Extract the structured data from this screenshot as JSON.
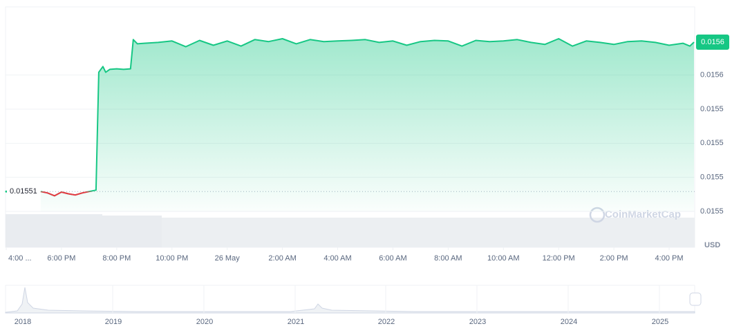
{
  "chart_data": {
    "type": "line",
    "x": [
      16,
      16.6,
      17.25,
      17.5,
      17.75,
      18,
      18.25,
      18.5,
      18.75,
      19,
      19.25,
      19.35,
      19.5,
      19.6,
      19.75,
      20,
      20.25,
      20.5,
      20.6,
      20.75,
      21,
      21.5,
      22,
      22.5,
      23,
      23.5,
      24,
      24.5,
      25,
      25.5,
      26,
      26.5,
      27,
      27.5,
      28,
      28.5,
      29,
      29.5,
      30,
      30.5,
      31,
      31.5,
      32,
      32.5,
      33,
      33.5,
      34,
      34.5,
      35,
      35.5,
      36,
      36.5,
      37,
      37.5,
      38,
      38.5,
      39,
      39.5,
      40,
      40.5,
      40.75,
      40.9
    ],
    "values": [
      0.01551,
      null,
      0.01551,
      0.0155095,
      0.0155085,
      0.0155098,
      0.0155092,
      0.0155088,
      0.0155095,
      0.01551,
      0.0155105,
      0.015552,
      0.015554,
      0.015552,
      0.015553,
      0.0155532,
      0.015553,
      0.0155532,
      0.0155635,
      0.015562,
      0.0155622,
      0.0155625,
      0.015563,
      0.015561,
      0.0155632,
      0.0155615,
      0.015563,
      0.0155612,
      0.0155635,
      0.0155628,
      0.0155638,
      0.015562,
      0.0155635,
      0.0155628,
      0.015563,
      0.0155632,
      0.0155635,
      0.0155625,
      0.015563,
      0.0155615,
      0.0155628,
      0.0155632,
      0.015563,
      0.0155612,
      0.0155632,
      0.0155628,
      0.015563,
      0.0155635,
      0.0155625,
      0.0155618,
      0.0155638,
      0.0155612,
      0.015563,
      0.0155625,
      0.0155618,
      0.0155628,
      0.015563,
      0.0155625,
      0.0155615,
      0.0155622,
      0.0155612,
      0.0155626
    ],
    "up_color": "#16c784",
    "down_color": "#ea3943",
    "xlim": [
      15.975,
      40.925
    ],
    "ylim": [
      0.015503,
      0.015575
    ],
    "xticks": [
      {
        "value": 16,
        "label": "4:00 ..."
      },
      {
        "value": 18,
        "label": "6:00 PM"
      },
      {
        "value": 20,
        "label": "8:00 PM"
      },
      {
        "value": 22,
        "label": "10:00 PM"
      },
      {
        "value": 24,
        "label": "26 May"
      },
      {
        "value": 26,
        "label": "2:00 AM"
      },
      {
        "value": 28,
        "label": "4:00 AM"
      },
      {
        "value": 30,
        "label": "6:00 AM"
      },
      {
        "value": 32,
        "label": "8:00 AM"
      },
      {
        "value": 34,
        "label": "10:00 AM"
      },
      {
        "value": 36,
        "label": "12:00 PM"
      },
      {
        "value": 38,
        "label": "2:00 PM"
      },
      {
        "value": 40,
        "label": "4:00 PM"
      }
    ],
    "yticks": [
      {
        "value": 0.015503,
        "label": "0.0155"
      },
      {
        "value": 0.015515,
        "label": "0.0155"
      },
      {
        "value": 0.015527,
        "label": "0.0155"
      },
      {
        "value": 0.015539,
        "label": "0.0155"
      },
      {
        "value": 0.015551,
        "label": "0.0156"
      }
    ],
    "grid": true,
    "baseline": 0.01551,
    "last_price": {
      "value": 0.0155626,
      "label": "0.0156"
    },
    "currency": "USD",
    "watermark": "CoinMarketCap",
    "navigator_years": [
      "2018",
      "2019",
      "2020",
      "2021",
      "2022",
      "2023",
      "2024",
      "2025"
    ]
  }
}
